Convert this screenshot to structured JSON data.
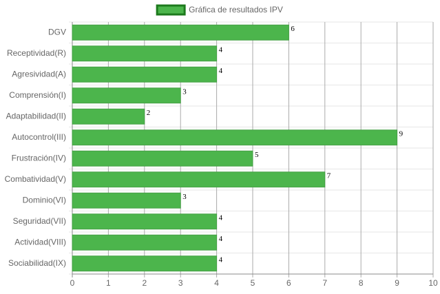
{
  "chart_data": {
    "type": "bar",
    "orientation": "horizontal",
    "categories": [
      "DGV",
      "Receptividad(R)",
      "Agresividad(A)",
      "Comprensión(I)",
      "Adaptabilidad(II)",
      "Autocontrol(III)",
      "Frustración(IV)",
      "Combatividad(V)",
      "Dominio(VI)",
      "Seguridad(VII)",
      "Actividad(VIII)",
      "Sociabilidad(IX)"
    ],
    "series": [
      {
        "name": "Gráfica de resultados IPV",
        "color": "#4cb54c",
        "values": [
          6,
          4,
          4,
          3,
          2,
          9,
          5,
          7,
          3,
          4,
          4,
          4
        ]
      }
    ],
    "xlim": [
      0,
      10
    ],
    "xticks": [
      0,
      1,
      2,
      3,
      4,
      5,
      6,
      7,
      8,
      9,
      10
    ],
    "grid": true,
    "legend": "top",
    "data_labels": true
  }
}
